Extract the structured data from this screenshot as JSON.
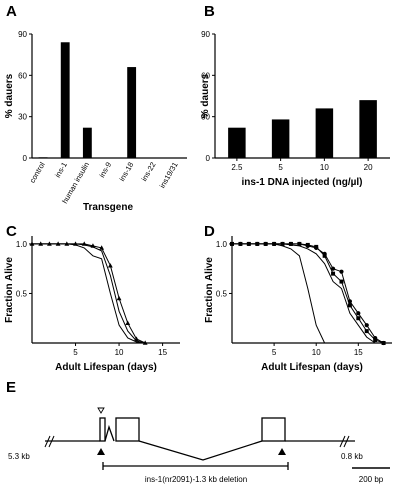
{
  "panels": {
    "A": "A",
    "B": "B",
    "C": "C",
    "D": "D",
    "E": "E"
  },
  "chart_data": [
    {
      "panel": "A",
      "type": "bar",
      "xlabel": "Transgene",
      "ylabel": "% dauers",
      "ylim": [
        0,
        90
      ],
      "yticks": [
        0,
        30,
        60,
        90
      ],
      "categories": [
        "control",
        "ins-1",
        "human insulin",
        "ins-9",
        "ins-18",
        "ins-22",
        "ins19/31"
      ],
      "values": [
        0.5,
        84,
        22,
        0,
        66,
        0,
        0
      ]
    },
    {
      "panel": "B",
      "type": "bar",
      "xlabel": "ins-1 DNA injected (ng/µl)",
      "ylabel": "% dauers",
      "ylim": [
        0,
        90
      ],
      "yticks": [
        0,
        30,
        60,
        90
      ],
      "categories": [
        "2.5",
        "5",
        "10",
        "20"
      ],
      "values": [
        22,
        28,
        36,
        42
      ]
    },
    {
      "panel": "C",
      "type": "line",
      "xlabel": "Adult Lifespan (days)",
      "ylabel": "Fraction Alive",
      "xlim": [
        0,
        17
      ],
      "ylim": [
        0,
        1.08
      ],
      "xticks": [
        5,
        10,
        15
      ],
      "yticks": [
        0.5,
        1.0
      ],
      "ytick_labels": [
        "0.5",
        "1.0"
      ],
      "series": [
        {
          "marker": "none",
          "x": [
            0,
            1,
            2,
            3,
            4,
            5,
            6,
            7,
            8,
            9,
            10,
            11,
            12,
            13
          ],
          "y": [
            1.0,
            1.0,
            1.0,
            1.0,
            1.0,
            0.99,
            0.96,
            0.88,
            0.85,
            0.5,
            0.18,
            0.05,
            0.01,
            0
          ]
        },
        {
          "marker": "triangle",
          "x": [
            0,
            1,
            2,
            3,
            4,
            5,
            6,
            7,
            8,
            9,
            10,
            11,
            12,
            13
          ],
          "y": [
            1.0,
            1.0,
            1.0,
            1.0,
            1.0,
            1.0,
            1.0,
            0.98,
            0.96,
            0.78,
            0.45,
            0.2,
            0.04,
            0
          ]
        },
        {
          "marker": "none",
          "x": [
            0,
            1,
            2,
            3,
            4,
            5,
            6,
            7,
            8,
            9,
            10,
            11,
            12,
            13
          ],
          "y": [
            1.0,
            1.0,
            1.0,
            1.0,
            1.0,
            1.0,
            0.99,
            0.97,
            0.93,
            0.68,
            0.32,
            0.12,
            0.02,
            0
          ]
        }
      ]
    },
    {
      "panel": "D",
      "type": "line",
      "xlabel": "Adult Lifespan (days)",
      "ylabel": "Fraction Alive",
      "xlim": [
        0,
        19
      ],
      "ylim": [
        0,
        1.08
      ],
      "xticks": [
        5,
        10,
        15
      ],
      "yticks": [
        0.5,
        1.0
      ],
      "ytick_labels": [
        "0.5",
        "1.0"
      ],
      "series": [
        {
          "marker": "none",
          "x": [
            0,
            1,
            2,
            3,
            4,
            5,
            6,
            7,
            8,
            9,
            10,
            11
          ],
          "y": [
            1.0,
            1.0,
            1.0,
            1.0,
            1.0,
            1.0,
            0.98,
            0.95,
            0.88,
            0.55,
            0.18,
            0
          ]
        },
        {
          "marker": "circle",
          "x": [
            0,
            1,
            2,
            3,
            4,
            5,
            6,
            7,
            8,
            9,
            10,
            11,
            12,
            13,
            14,
            15,
            16,
            17,
            18
          ],
          "y": [
            1.0,
            1.0,
            1.0,
            1.0,
            1.0,
            1.0,
            1.0,
            1.0,
            1.0,
            0.98,
            0.96,
            0.9,
            0.75,
            0.72,
            0.42,
            0.3,
            0.18,
            0.05,
            0
          ]
        },
        {
          "marker": "square",
          "x": [
            0,
            1,
            2,
            3,
            4,
            5,
            6,
            7,
            8,
            9,
            10,
            11,
            12,
            13,
            14,
            15,
            16,
            17,
            18
          ],
          "y": [
            1.0,
            1.0,
            1.0,
            1.0,
            1.0,
            1.0,
            1.0,
            1.0,
            1.0,
            0.99,
            0.97,
            0.88,
            0.7,
            0.62,
            0.38,
            0.25,
            0.12,
            0.03,
            0
          ]
        },
        {
          "marker": "none",
          "x": [
            0,
            1,
            2,
            3,
            4,
            5,
            6,
            7,
            8,
            9,
            10,
            11,
            12,
            13,
            14,
            15,
            16,
            17
          ],
          "y": [
            1.0,
            1.0,
            1.0,
            1.0,
            1.0,
            1.0,
            1.0,
            0.99,
            0.98,
            0.95,
            0.9,
            0.8,
            0.62,
            0.55,
            0.3,
            0.18,
            0.06,
            0
          ]
        }
      ]
    }
  ],
  "gene_diagram": {
    "left_label": "5.3 kb",
    "right_label": "0.8 kb",
    "deletion_label": "ins-1(nr2091)-1.3 kb deletion",
    "scale_label": "200 bp"
  }
}
